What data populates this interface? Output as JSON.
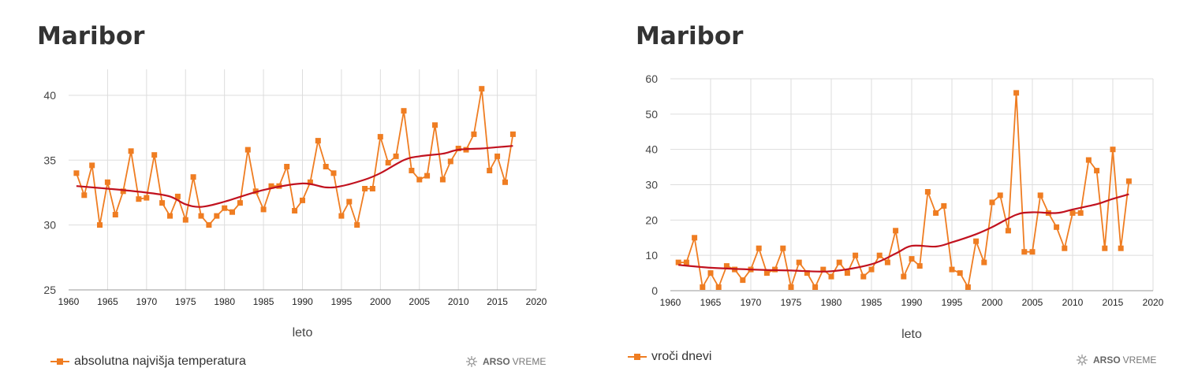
{
  "chart_data": [
    {
      "type": "line",
      "title": "Maribor",
      "xlabel": "leto",
      "ylabel": "",
      "xlim": [
        1960,
        2020
      ],
      "ylim": [
        25,
        42
      ],
      "x_ticks": [
        "1960",
        "1965",
        "1970",
        "1975",
        "1980",
        "1985",
        "1990",
        "1995",
        "2000",
        "2005",
        "2010",
        "2015",
        "2020"
      ],
      "y_ticks": [
        "25",
        "30",
        "35",
        "40"
      ],
      "grid": true,
      "legend_position": "bottom-left",
      "series": [
        {
          "name": "absolutna najvišja temperatura",
          "color": "#ef7d22",
          "marker": "square",
          "x": [
            1961,
            1962,
            1963,
            1964,
            1965,
            1966,
            1967,
            1968,
            1969,
            1970,
            1971,
            1972,
            1973,
            1974,
            1975,
            1976,
            1977,
            1978,
            1979,
            1980,
            1981,
            1982,
            1983,
            1984,
            1985,
            1986,
            1987,
            1988,
            1989,
            1990,
            1991,
            1992,
            1993,
            1994,
            1995,
            1996,
            1997,
            1998,
            1999,
            2000,
            2001,
            2002,
            2003,
            2004,
            2005,
            2006,
            2007,
            2008,
            2009,
            2010,
            2011,
            2012,
            2013,
            2014,
            2015,
            2016,
            2017
          ],
          "y": [
            34.0,
            32.3,
            34.6,
            30.0,
            33.3,
            30.8,
            32.6,
            35.7,
            32.0,
            32.1,
            35.4,
            31.7,
            30.7,
            32.2,
            30.4,
            33.7,
            30.7,
            30.0,
            30.7,
            31.3,
            31.0,
            31.7,
            35.8,
            32.6,
            31.2,
            33.0,
            33.0,
            34.5,
            31.1,
            31.9,
            33.3,
            36.5,
            34.5,
            34.0,
            30.7,
            31.8,
            30.0,
            32.8,
            32.8,
            36.8,
            34.8,
            35.3,
            38.8,
            34.2,
            33.5,
            33.8,
            37.7,
            33.5,
            34.9,
            35.9,
            35.8,
            37.0,
            40.5,
            34.2,
            35.3,
            33.3,
            37.0
          ]
        }
      ],
      "trend": {
        "color": "#c1121f",
        "x": [
          1961,
          1965,
          1970,
          1973,
          1975,
          1977,
          1980,
          1985,
          1990,
          1993,
          1995,
          1998,
          2000,
          2003,
          2005,
          2008,
          2010,
          2013,
          2015,
          2017
        ],
        "y": [
          33.0,
          32.8,
          32.5,
          32.2,
          31.6,
          31.4,
          31.8,
          32.7,
          33.2,
          32.9,
          33.0,
          33.5,
          34.0,
          35.0,
          35.3,
          35.5,
          35.8,
          35.9,
          36.0,
          36.1
        ]
      },
      "brand": {
        "bold": "ARSO",
        "text": "VREME"
      }
    },
    {
      "type": "line",
      "title": "Maribor",
      "xlabel": "leto",
      "ylabel": "",
      "xlim": [
        1960,
        2020
      ],
      "ylim": [
        0,
        60
      ],
      "x_ticks": [
        "1960",
        "1965",
        "1970",
        "1975",
        "1980",
        "1985",
        "1990",
        "1995",
        "2000",
        "2005",
        "2010",
        "2015",
        "2020"
      ],
      "y_ticks": [
        "0",
        "10",
        "20",
        "30",
        "40",
        "50",
        "60"
      ],
      "grid": true,
      "legend_position": "bottom-left",
      "series": [
        {
          "name": "vroči dnevi",
          "color": "#ef7d22",
          "marker": "square",
          "x": [
            1961,
            1962,
            1963,
            1964,
            1965,
            1966,
            1967,
            1968,
            1969,
            1970,
            1971,
            1972,
            1973,
            1974,
            1975,
            1976,
            1977,
            1978,
            1979,
            1980,
            1981,
            1982,
            1983,
            1984,
            1985,
            1986,
            1987,
            1988,
            1989,
            1990,
            1991,
            1992,
            1993,
            1994,
            1995,
            1996,
            1997,
            1998,
            1999,
            2000,
            2001,
            2002,
            2003,
            2004,
            2005,
            2006,
            2007,
            2008,
            2009,
            2010,
            2011,
            2012,
            2013,
            2014,
            2015,
            2016,
            2017
          ],
          "y": [
            8,
            8,
            15,
            1,
            5,
            1,
            7,
            6,
            3,
            6,
            12,
            5,
            6,
            12,
            1,
            8,
            5,
            1,
            6,
            4,
            8,
            5,
            10,
            4,
            6,
            10,
            8,
            17,
            4,
            9,
            7,
            28,
            22,
            24,
            6,
            5,
            1,
            14,
            8,
            25,
            27,
            17,
            56,
            11,
            11,
            27,
            22,
            18,
            12,
            22,
            22,
            37,
            34,
            12,
            40,
            12,
            31
          ]
        }
      ],
      "trend": {
        "color": "#c1121f",
        "x": [
          1961,
          1965,
          1970,
          1975,
          1980,
          1985,
          1988,
          1990,
          1993,
          1995,
          1998,
          2000,
          2003,
          2005,
          2008,
          2010,
          2013,
          2015,
          2017
        ],
        "y": [
          7.3,
          6.5,
          6.0,
          5.7,
          5.5,
          7.5,
          10.5,
          12.7,
          12.5,
          13.7,
          16.0,
          18.0,
          21.5,
          22.2,
          22.0,
          23.0,
          24.5,
          26.0,
          27.3
        ]
      },
      "brand": {
        "bold": "ARSO",
        "text": "VREME"
      }
    }
  ]
}
